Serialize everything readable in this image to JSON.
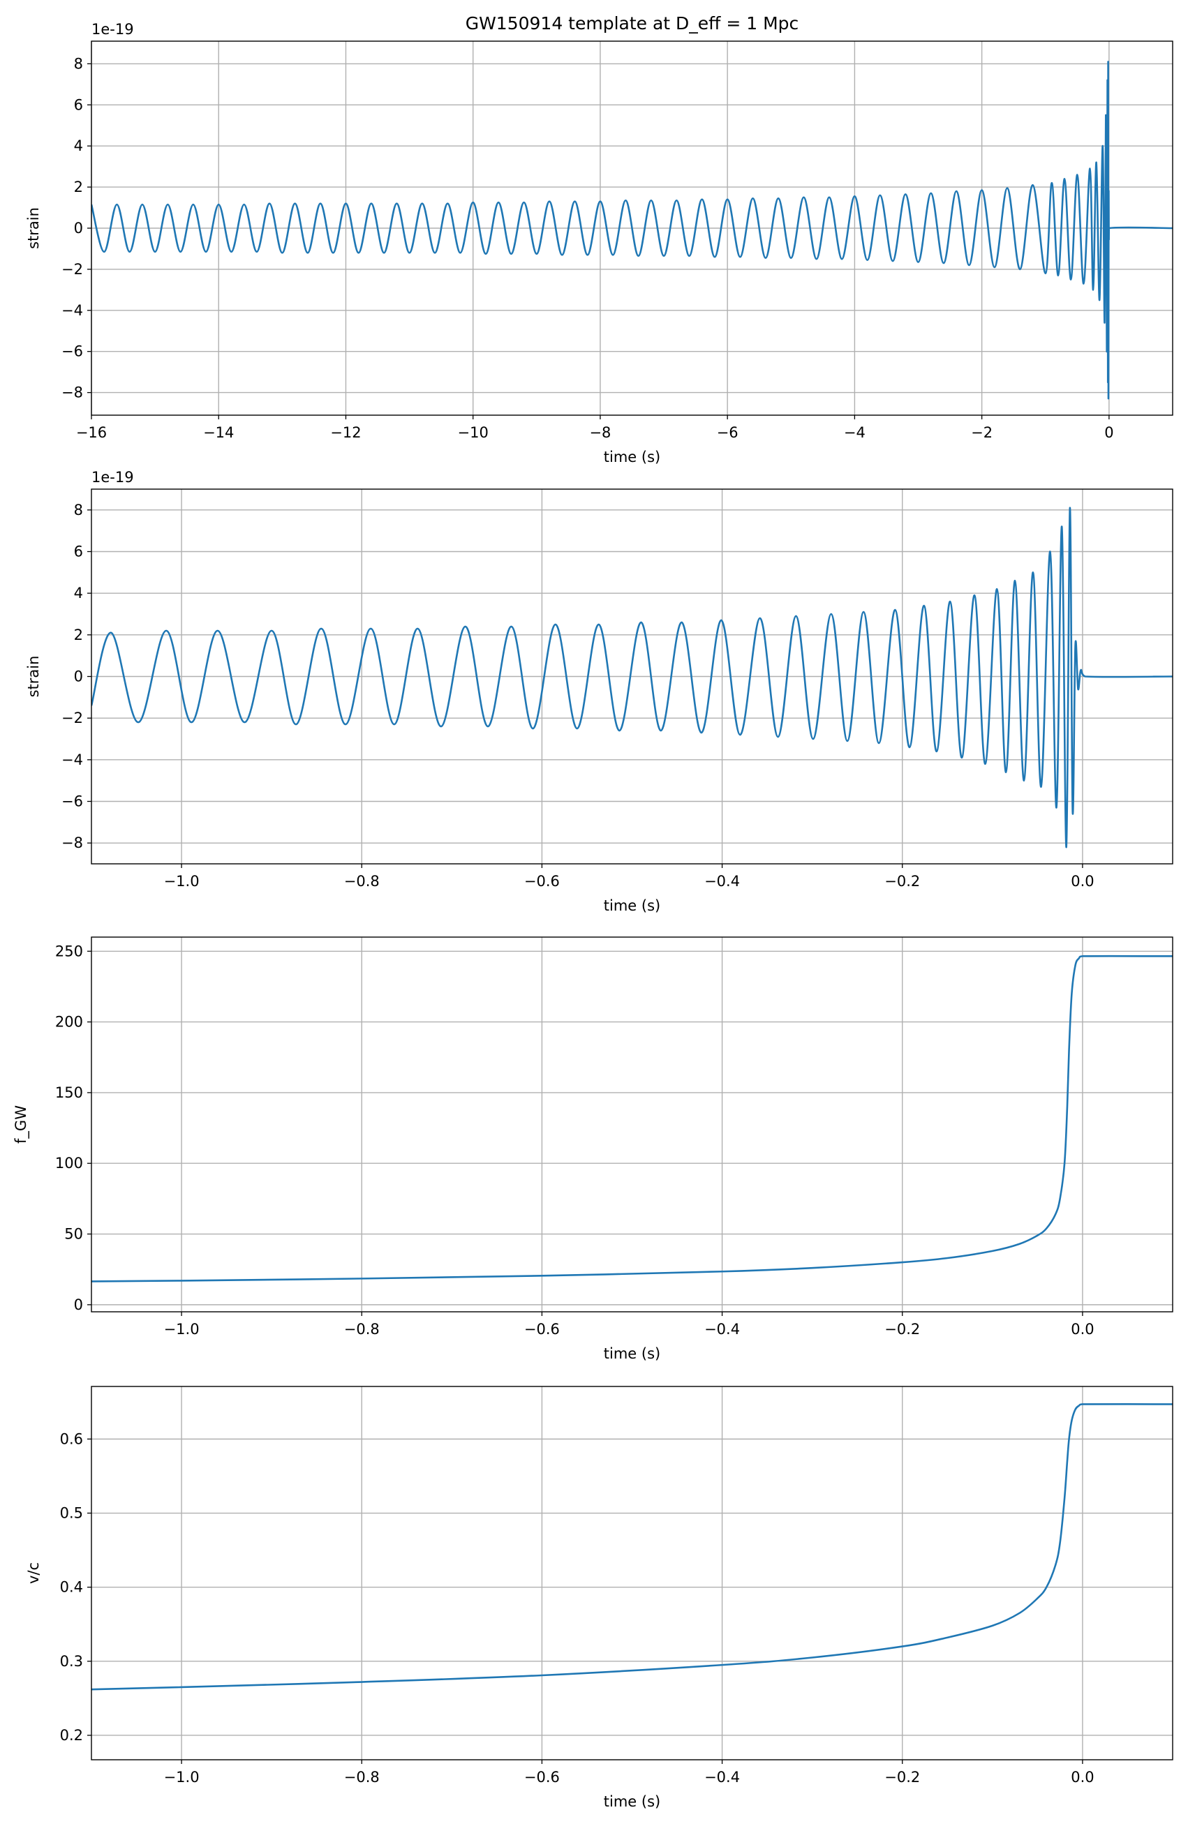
{
  "chart_data": [
    {
      "type": "line",
      "title": "GW150914 template at D_eff = 1 Mpc",
      "xlabel": "time (s)",
      "ylabel": "strain",
      "offset_text": "1e-19",
      "color": "#1f77b4",
      "grid": true,
      "xlim": [
        -16,
        1
      ],
      "ylim": [
        -9.1,
        9.1
      ],
      "xticks": [
        {
          "value": -16,
          "label": "−16"
        },
        {
          "value": -14,
          "label": "−14"
        },
        {
          "value": -12,
          "label": "−12"
        },
        {
          "value": -10,
          "label": "−10"
        },
        {
          "value": -8,
          "label": "−8"
        },
        {
          "value": -6,
          "label": "−6"
        },
        {
          "value": -4,
          "label": "−4"
        },
        {
          "value": -2,
          "label": "−2"
        },
        0
      ],
      "yticks": [
        {
          "value": -8,
          "label": "−8"
        },
        {
          "value": -6,
          "label": "−6"
        },
        {
          "value": -4,
          "label": "−4"
        },
        {
          "value": -2,
          "label": "−2"
        },
        0,
        2,
        4,
        6,
        8
      ],
      "x": [
        -16,
        -15.8,
        -15.6,
        -15.4,
        -15.2,
        -15,
        -14.8,
        -14.6,
        -14.4,
        -14.2,
        -14,
        -13.8,
        -13.6,
        -13.4,
        -13.2,
        -13,
        -12.8,
        -12.6,
        -12.4,
        -12.2,
        -12,
        -11.8,
        -11.6,
        -11.4,
        -11.2,
        -11,
        -10.8,
        -10.6,
        -10.4,
        -10.2,
        -10,
        -9.8,
        -9.6,
        -9.4,
        -9.2,
        -9,
        -8.8,
        -8.6,
        -8.4,
        -8.2,
        -8,
        -7.8,
        -7.6,
        -7.4,
        -7.2,
        -7,
        -6.8,
        -6.6,
        -6.4,
        -6.2,
        -6,
        -5.8,
        -5.6,
        -5.4,
        -5.2,
        -5,
        -4.8,
        -4.6,
        -4.4,
        -4.2,
        -4,
        -3.8,
        -3.6,
        -3.4,
        -3.2,
        -3,
        -2.8,
        -2.6,
        -2.4,
        -2.2,
        -2,
        -1.8,
        -1.6,
        -1.4,
        -1.2,
        -1,
        -0.9,
        -0.8,
        -0.7,
        -0.6,
        -0.5,
        -0.4,
        -0.3,
        -0.25,
        -0.2,
        -0.15,
        -0.1,
        -0.07,
        -0.05,
        -0.035,
        -0.025,
        -0.018,
        -0.014,
        -0.01,
        -0.006,
        -0.003,
        0,
        1
      ],
      "values": [
        1.15,
        -1.15,
        1.15,
        -1.15,
        1.15,
        -1.15,
        1.15,
        -1.15,
        1.15,
        -1.15,
        1.15,
        -1.15,
        1.15,
        -1.15,
        1.2,
        -1.2,
        1.2,
        -1.2,
        1.2,
        -1.2,
        1.2,
        -1.2,
        1.2,
        -1.2,
        1.2,
        -1.2,
        1.2,
        -1.2,
        1.2,
        -1.2,
        1.25,
        -1.25,
        1.25,
        -1.25,
        1.25,
        -1.25,
        1.3,
        -1.3,
        1.3,
        -1.3,
        1.3,
        -1.3,
        1.35,
        -1.35,
        1.35,
        -1.35,
        1.35,
        -1.35,
        1.4,
        -1.4,
        1.4,
        -1.4,
        1.45,
        -1.45,
        1.45,
        -1.45,
        1.5,
        -1.5,
        1.5,
        -1.5,
        1.55,
        -1.55,
        1.6,
        -1.6,
        1.65,
        -1.65,
        1.7,
        -1.7,
        1.8,
        -1.8,
        1.85,
        -1.9,
        1.95,
        -2.0,
        2.1,
        -2.2,
        2.2,
        -2.3,
        2.4,
        -2.5,
        2.6,
        -2.7,
        2.9,
        -3.0,
        3.2,
        -3.5,
        4.0,
        -4.6,
        5.5,
        -6.0,
        7.2,
        -7.5,
        8.1,
        -8.2,
        1.5,
        -0.5,
        0,
        0
      ]
    },
    {
      "type": "line",
      "xlabel": "time (s)",
      "ylabel": "strain",
      "offset_text": "1e-19",
      "color": "#1f77b4",
      "grid": true,
      "xlim": [
        -1.1,
        0.1
      ],
      "ylim": [
        -9.0,
        9.0
      ],
      "xticks": [
        {
          "value": -1.0,
          "label": "−1.0"
        },
        {
          "value": -0.8,
          "label": "−0.8"
        },
        {
          "value": -0.6,
          "label": "−0.6"
        },
        {
          "value": -0.4,
          "label": "−0.4"
        },
        {
          "value": -0.2,
          "label": "−0.2"
        },
        {
          "value": 0,
          "label": "0.0"
        }
      ],
      "yticks": [
        {
          "value": -8,
          "label": "−8"
        },
        {
          "value": -6,
          "label": "−6"
        },
        {
          "value": -4,
          "label": "−4"
        },
        {
          "value": -2,
          "label": "−2"
        },
        0,
        2,
        4,
        6,
        8
      ],
      "x": [
        -1.1,
        -1.078,
        -1.048,
        -1.017,
        -0.989,
        -0.96,
        -0.93,
        -0.9,
        -0.873,
        -0.845,
        -0.818,
        -0.79,
        -0.764,
        -0.738,
        -0.712,
        -0.685,
        -0.66,
        -0.634,
        -0.61,
        -0.585,
        -0.561,
        -0.537,
        -0.514,
        -0.49,
        -0.468,
        -0.445,
        -0.423,
        -0.401,
        -0.38,
        -0.358,
        -0.338,
        -0.318,
        -0.299,
        -0.279,
        -0.261,
        -0.243,
        -0.226,
        -0.208,
        -0.192,
        -0.176,
        -0.162,
        -0.147,
        -0.134,
        -0.12,
        -0.108,
        -0.095,
        -0.085,
        -0.075,
        -0.065,
        -0.055,
        -0.046,
        -0.036,
        -0.029,
        -0.023,
        -0.018,
        -0.014,
        -0.011,
        -0.008,
        -0.005,
        -0.002,
        0.003,
        0.1
      ],
      "values": [
        -1.4,
        2.1,
        -2.2,
        2.2,
        -2.2,
        2.2,
        -2.2,
        2.2,
        -2.3,
        2.3,
        -2.3,
        2.3,
        -2.3,
        2.3,
        -2.4,
        2.4,
        -2.4,
        2.4,
        -2.5,
        2.5,
        -2.5,
        2.5,
        -2.6,
        2.6,
        -2.6,
        2.6,
        -2.7,
        2.7,
        -2.8,
        2.8,
        -2.9,
        2.9,
        -3.0,
        3.0,
        -3.1,
        3.1,
        -3.2,
        3.2,
        -3.4,
        3.4,
        -3.6,
        3.6,
        -3.9,
        3.9,
        -4.2,
        4.2,
        -4.6,
        4.6,
        -5.0,
        5.0,
        -5.3,
        6.0,
        -6.3,
        7.2,
        -8.2,
        8.1,
        -6.5,
        1.5,
        -0.6,
        0.3,
        0,
        0
      ]
    },
    {
      "type": "line",
      "xlabel": "time (s)",
      "ylabel": "f_GW",
      "color": "#1f77b4",
      "grid": true,
      "xlim": [
        -1.1,
        0.1
      ],
      "ylim": [
        -5,
        260
      ],
      "xticks": [
        {
          "value": -1.0,
          "label": "−1.0"
        },
        {
          "value": -0.8,
          "label": "−0.8"
        },
        {
          "value": -0.6,
          "label": "−0.6"
        },
        {
          "value": -0.4,
          "label": "−0.4"
        },
        {
          "value": -0.2,
          "label": "−0.2"
        },
        {
          "value": 0,
          "label": "0.0"
        }
      ],
      "yticks": [
        0,
        50,
        100,
        150,
        200,
        250
      ],
      "x": [
        -1.1,
        -1.0,
        -0.8,
        -0.6,
        -0.4,
        -0.3,
        -0.2,
        -0.15,
        -0.1,
        -0.07,
        -0.05,
        -0.04,
        -0.03,
        -0.025,
        -0.02,
        -0.017,
        -0.015,
        -0.012,
        -0.008,
        -0.004,
        0,
        0.1
      ],
      "values": [
        16.5,
        17,
        18.5,
        20.5,
        23.5,
        26,
        30,
        33,
        38,
        43,
        49,
        54,
        64,
        75,
        100,
        140,
        180,
        220,
        240,
        245,
        246.5,
        246.5
      ]
    },
    {
      "type": "line",
      "xlabel": "time (s)",
      "ylabel": "v/c",
      "color": "#1f77b4",
      "grid": true,
      "xlim": [
        -1.1,
        0.1
      ],
      "ylim": [
        0.167,
        0.671
      ],
      "xticks": [
        {
          "value": -1.0,
          "label": "−1.0"
        },
        {
          "value": -0.8,
          "label": "−0.8"
        },
        {
          "value": -0.6,
          "label": "−0.6"
        },
        {
          "value": -0.4,
          "label": "−0.4"
        },
        {
          "value": -0.2,
          "label": "−0.2"
        },
        {
          "value": 0,
          "label": "0.0"
        }
      ],
      "yticks": [
        0.2,
        0.3,
        0.4,
        0.5,
        0.6
      ],
      "x": [
        -1.1,
        -1.0,
        -0.8,
        -0.6,
        -0.4,
        -0.3,
        -0.2,
        -0.15,
        -0.1,
        -0.07,
        -0.05,
        -0.04,
        -0.03,
        -0.025,
        -0.02,
        -0.017,
        -0.015,
        -0.012,
        -0.008,
        -0.004,
        0,
        0.1
      ],
      "values": [
        0.262,
        0.265,
        0.272,
        0.281,
        0.295,
        0.305,
        0.32,
        0.332,
        0.348,
        0.365,
        0.385,
        0.4,
        0.43,
        0.46,
        0.52,
        0.57,
        0.6,
        0.625,
        0.64,
        0.645,
        0.647,
        0.647
      ]
    }
  ]
}
